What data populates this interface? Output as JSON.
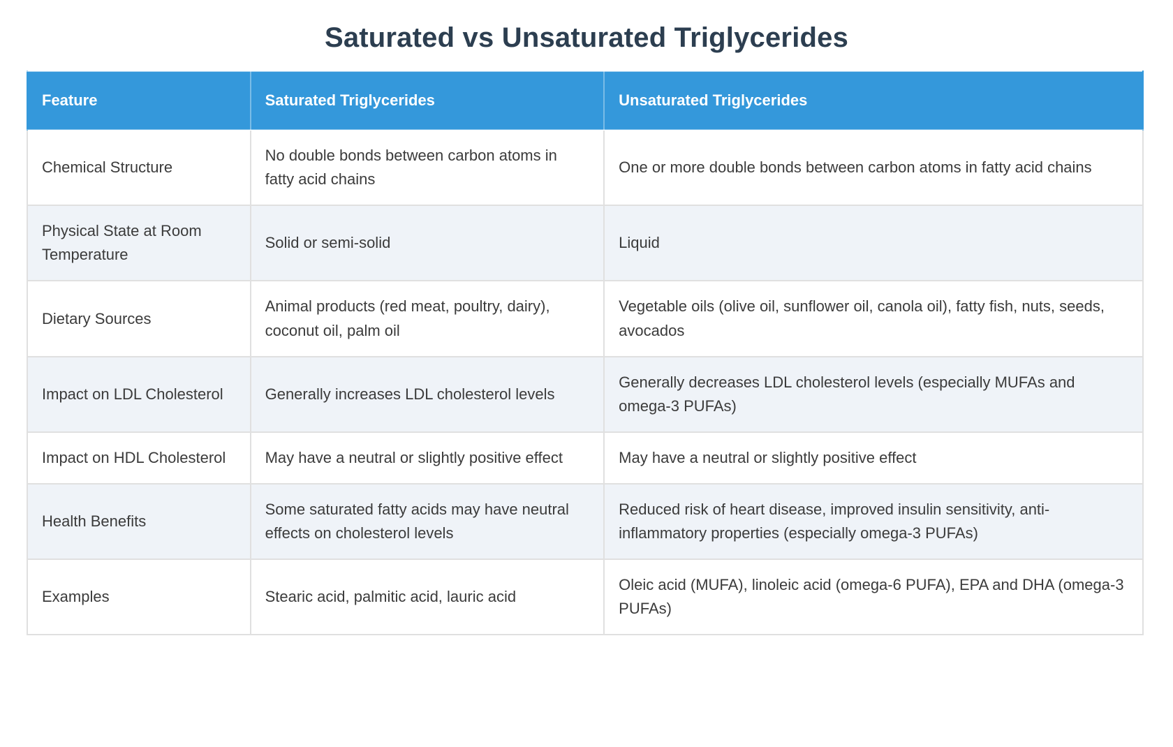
{
  "page": {
    "title": "Saturated vs Unsaturated Triglycerides"
  },
  "table": {
    "columns": [
      "Feature",
      "Saturated Triglycerides",
      "Unsaturated Triglycerides"
    ],
    "rows": [
      {
        "feature": "Chemical Structure",
        "saturated": "No double bonds between carbon atoms in fatty acid chains",
        "unsaturated": "One or more double bonds between carbon atoms in fatty acid chains"
      },
      {
        "feature": "Physical State at Room Temperature",
        "saturated": "Solid or semi-solid",
        "unsaturated": "Liquid"
      },
      {
        "feature": "Dietary Sources",
        "saturated": "Animal products (red meat, poultry, dairy), coconut oil, palm oil",
        "unsaturated": "Vegetable oils (olive oil, sunflower oil, canola oil), fatty fish, nuts, seeds, avocados"
      },
      {
        "feature": "Impact on LDL Cholesterol",
        "saturated": "Generally increases LDL cholesterol levels",
        "unsaturated": "Generally decreases LDL cholesterol levels (especially MUFAs and omega-3 PUFAs)"
      },
      {
        "feature": "Impact on HDL Cholesterol",
        "saturated": "May have a neutral or slightly positive effect",
        "unsaturated": "May have a neutral or slightly positive effect"
      },
      {
        "feature": "Health Benefits",
        "saturated": "Some saturated fatty acids may have neutral effects on cholesterol levels",
        "unsaturated": "Reduced risk of heart disease, improved insulin sensitivity, anti-inflammatory properties (especially omega-3 PUFAs)"
      },
      {
        "feature": "Examples",
        "saturated": "Stearic acid, palmitic acid, lauric acid",
        "unsaturated": "Oleic acid (MUFA), linoleic acid (omega-6 PUFA), EPA and DHA (omega-3 PUFAs)"
      }
    ]
  },
  "colors": {
    "header_bg": "#3498db",
    "header_text": "#ffffff",
    "alt_row_bg": "#eff3f8",
    "row_bg": "#ffffff",
    "border": "#e0e0e0",
    "title_text": "#2c3e50",
    "body_text": "#3b3b3b"
  }
}
